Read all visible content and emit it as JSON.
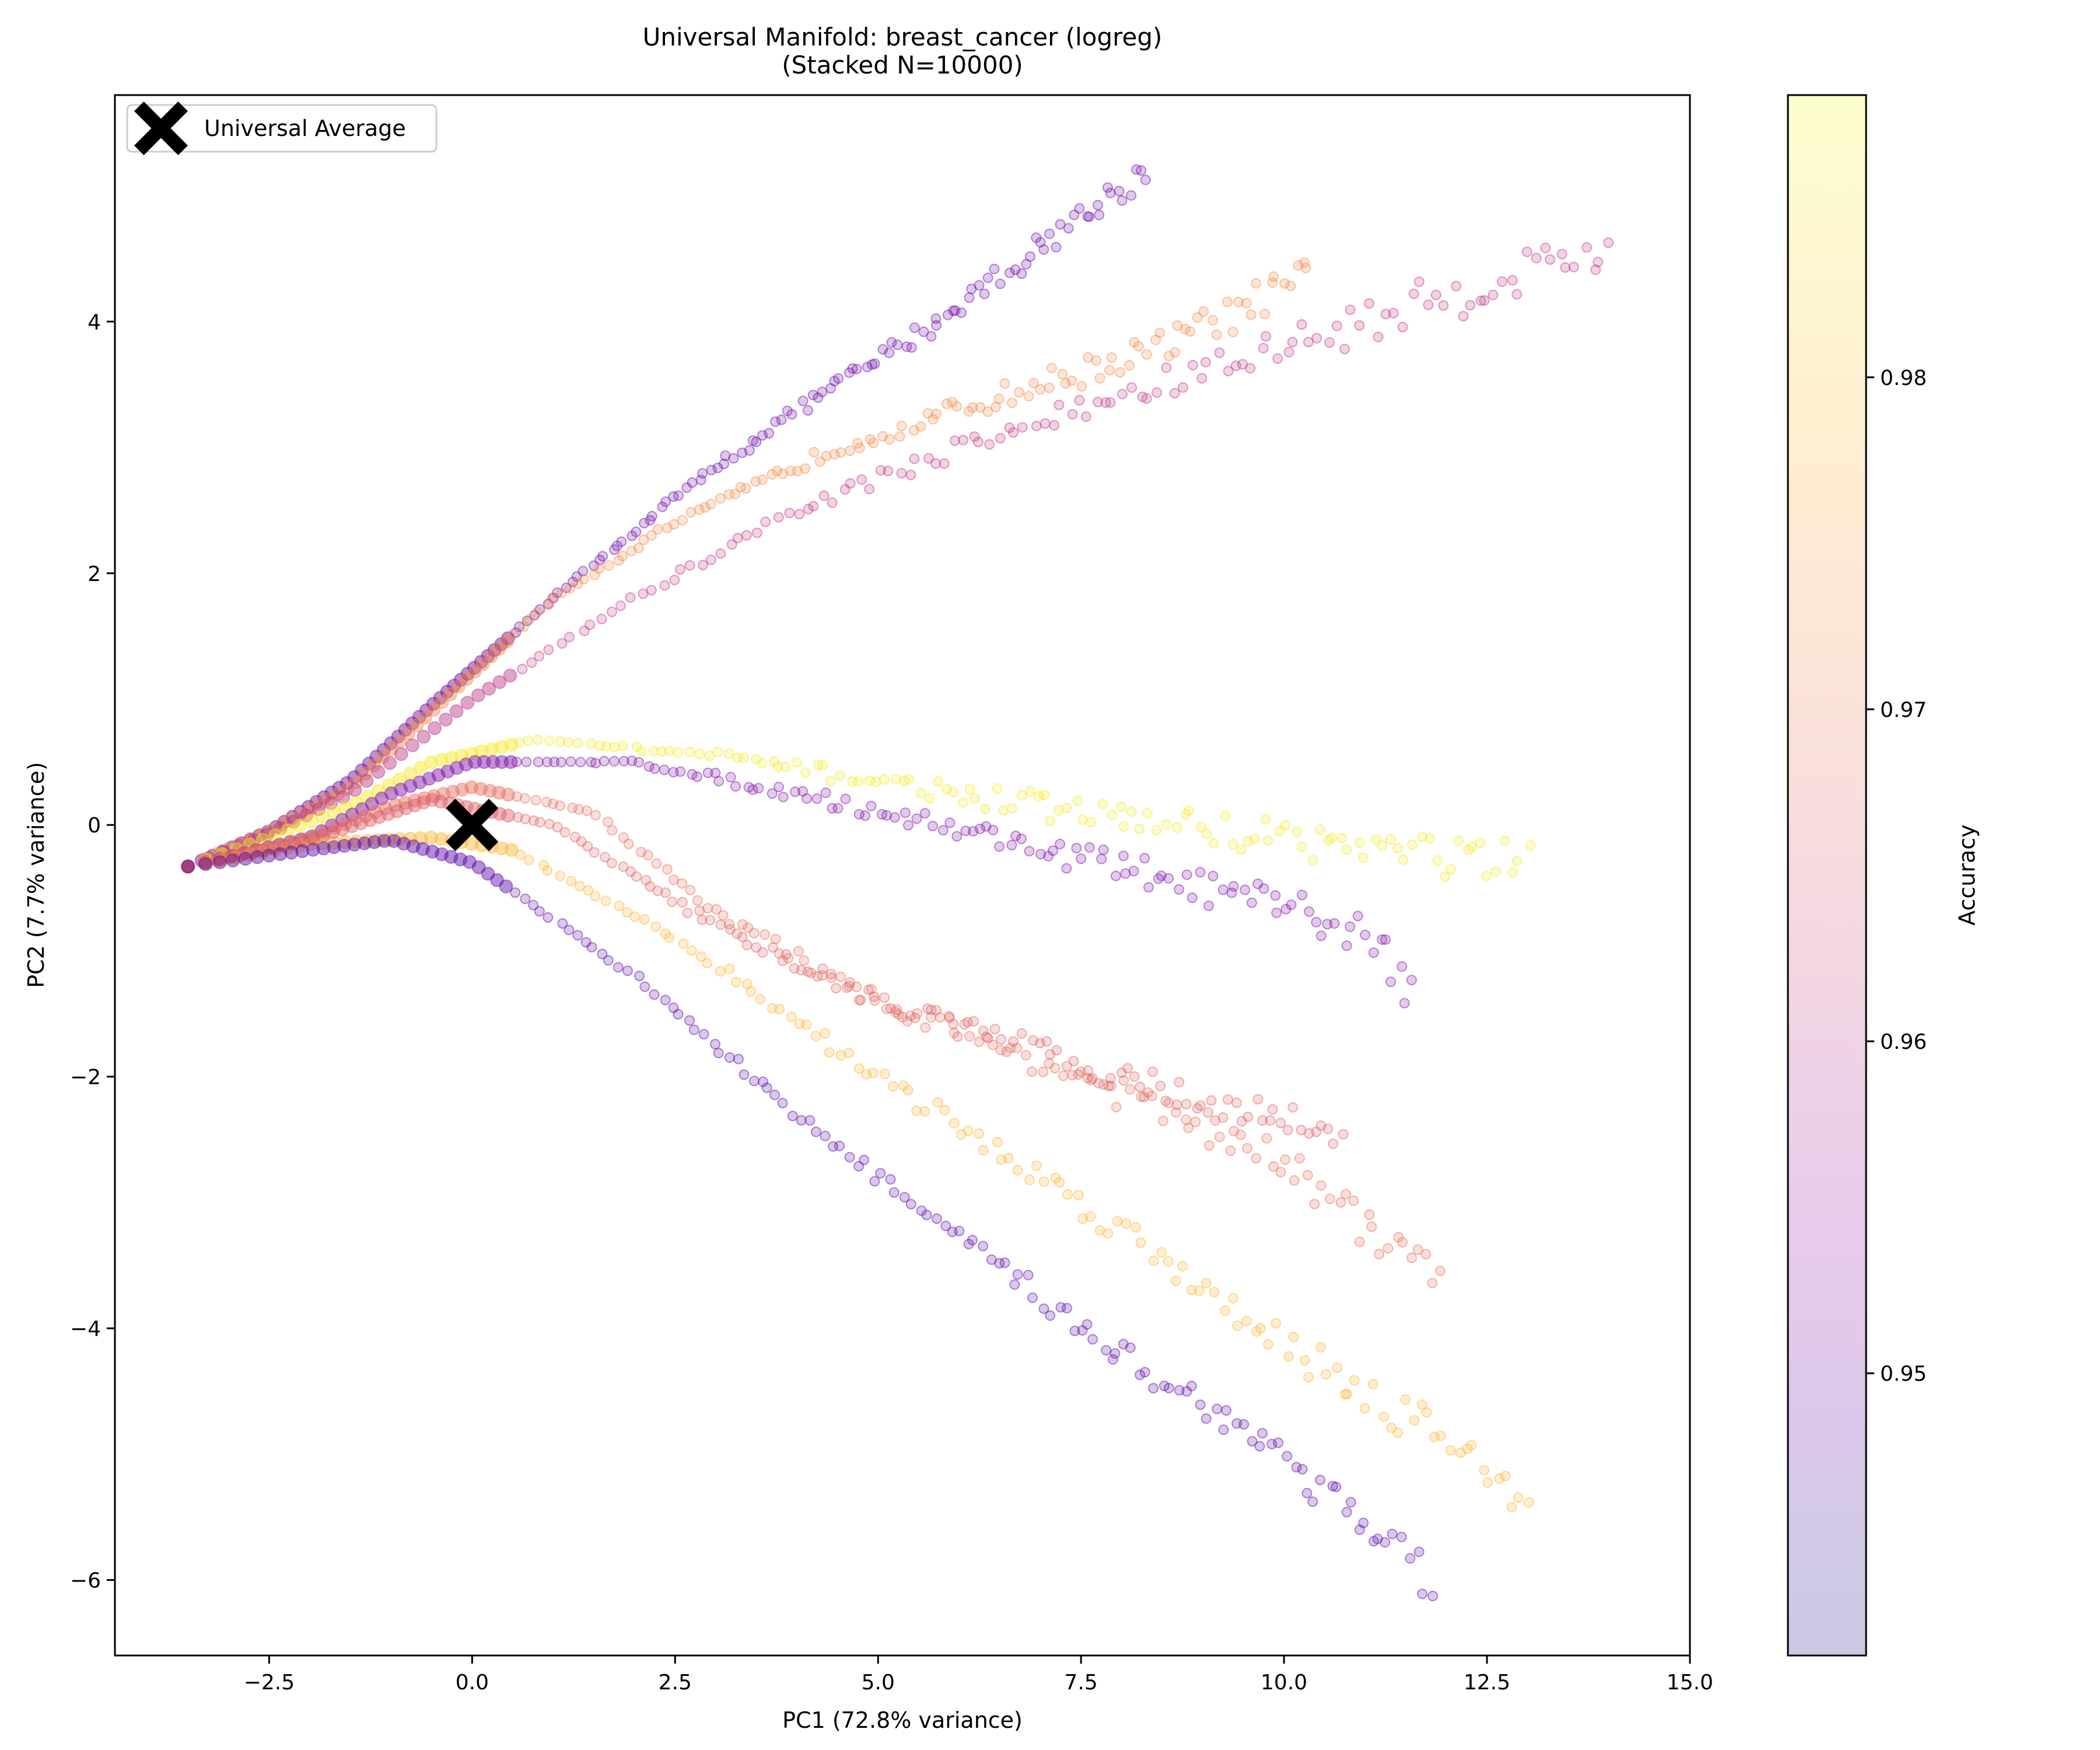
{
  "chart_data": {
    "type": "scatter",
    "title": "Universal Manifold: breast_cancer (logreg)",
    "subtitle": "(Stacked N=10000)",
    "xlabel": "PC1 (72.8% variance)",
    "ylabel": "PC2 (7.7% variance)",
    "xlim": [
      -4.4,
      15.0
    ],
    "ylim": [
      -6.6,
      5.8
    ],
    "xticks": [
      -2.5,
      0.0,
      2.5,
      5.0,
      7.5,
      10.0,
      12.5,
      15.0
    ],
    "xtick_labels": [
      "−2.5",
      "0.0",
      "2.5",
      "5.0",
      "7.5",
      "10.0",
      "12.5",
      "15.0"
    ],
    "yticks": [
      -6,
      -4,
      -2,
      0,
      2,
      4
    ],
    "ytick_labels": [
      "−6",
      "−4",
      "−2",
      "0",
      "2",
      "4"
    ],
    "grid": false,
    "legend": {
      "position": "top-left",
      "entries": [
        {
          "label": "Universal Average",
          "marker": "X",
          "color": "#000000"
        }
      ]
    },
    "colorbar": {
      "label": "Accuracy",
      "range": [
        0.9415,
        0.9885
      ],
      "ticks": [
        0.95,
        0.96,
        0.97,
        0.98
      ],
      "tick_labels": [
        "0.95",
        "0.96",
        "0.97",
        "0.98"
      ],
      "colormap": "plasma"
    },
    "origin": [
      -3.5,
      -0.33
    ],
    "universal_average": {
      "x": 0.0,
      "y": 0.0
    },
    "series": [
      {
        "name": "trajectory-1",
        "accuracy": 0.95,
        "points": [
          [
            -3.5,
            -0.33
          ],
          [
            -2.5,
            -0.05
          ],
          [
            -1.5,
            0.35
          ],
          [
            -0.5,
            0.95
          ],
          [
            1.0,
            1.8
          ],
          [
            2.5,
            2.6
          ],
          [
            4.0,
            3.3
          ],
          [
            5.5,
            3.9
          ],
          [
            7.0,
            4.6
          ],
          [
            8.3,
            5.2
          ]
        ]
      },
      {
        "name": "trajectory-2",
        "accuracy": 0.972,
        "points": [
          [
            -3.5,
            -0.33
          ],
          [
            -2.5,
            -0.05
          ],
          [
            -1.5,
            0.3
          ],
          [
            -0.5,
            0.9
          ],
          [
            1.0,
            1.8
          ],
          [
            2.5,
            2.4
          ],
          [
            4.5,
            3.0
          ],
          [
            6.5,
            3.4
          ],
          [
            8.5,
            3.8
          ],
          [
            10.3,
            4.35
          ]
        ]
      },
      {
        "name": "trajectory-3",
        "accuracy": 0.96,
        "points": [
          [
            -3.5,
            -0.33
          ],
          [
            -2.5,
            -0.07
          ],
          [
            -1.5,
            0.25
          ],
          [
            0.0,
            1.0
          ],
          [
            2.0,
            1.8
          ],
          [
            4.0,
            2.5
          ],
          [
            6.0,
            3.0
          ],
          [
            8.0,
            3.4
          ],
          [
            10.0,
            3.8
          ],
          [
            12.0,
            4.2
          ],
          [
            14.0,
            4.6
          ]
        ]
      },
      {
        "name": "trajectory-4",
        "accuracy": 0.986,
        "points": [
          [
            -3.5,
            -0.33
          ],
          [
            -2.5,
            -0.1
          ],
          [
            -1.5,
            0.15
          ],
          [
            -0.5,
            0.5
          ],
          [
            0.8,
            0.68
          ],
          [
            3.0,
            0.55
          ],
          [
            5.0,
            0.35
          ],
          [
            7.5,
            0.1
          ],
          [
            10.0,
            -0.1
          ],
          [
            12.0,
            -0.25
          ],
          [
            13.0,
            -0.35
          ]
        ]
      },
      {
        "name": "trajectory-5",
        "accuracy": 0.952,
        "points": [
          [
            -3.5,
            -0.33
          ],
          [
            -2.0,
            -0.1
          ],
          [
            -1.0,
            0.25
          ],
          [
            0.0,
            0.5
          ],
          [
            2.0,
            0.5
          ],
          [
            4.0,
            0.25
          ],
          [
            6.5,
            -0.1
          ],
          [
            9.0,
            -0.5
          ],
          [
            11.0,
            -0.85
          ],
          [
            11.6,
            -1.3
          ]
        ]
      },
      {
        "name": "trajectory-6",
        "accuracy": 0.968,
        "points": [
          [
            -3.5,
            -0.33
          ],
          [
            -2.0,
            -0.1
          ],
          [
            -1.0,
            0.15
          ],
          [
            0.0,
            0.3
          ],
          [
            1.5,
            0.1
          ],
          [
            3.0,
            -0.7
          ],
          [
            5.0,
            -1.4
          ],
          [
            7.5,
            -2.0
          ],
          [
            10.0,
            -2.7
          ],
          [
            11.9,
            -3.6
          ]
        ]
      },
      {
        "name": "trajectory-7",
        "accuracy": 0.978,
        "points": [
          [
            -3.5,
            -0.33
          ],
          [
            -2.0,
            -0.15
          ],
          [
            -0.5,
            -0.1
          ],
          [
            0.5,
            -0.2
          ],
          [
            2.5,
            -0.9
          ],
          [
            5.0,
            -2.0
          ],
          [
            7.5,
            -3.0
          ],
          [
            10.0,
            -4.1
          ],
          [
            12.0,
            -4.9
          ],
          [
            13.0,
            -5.3
          ]
        ]
      },
      {
        "name": "trajectory-8",
        "accuracy": 0.966,
        "points": [
          [
            -3.5,
            -0.33
          ],
          [
            -2.0,
            -0.12
          ],
          [
            -0.5,
            0.2
          ],
          [
            1.0,
            0.0
          ],
          [
            3.0,
            -0.8
          ],
          [
            5.0,
            -1.4
          ],
          [
            7.5,
            -1.9
          ],
          [
            9.5,
            -2.3
          ],
          [
            10.7,
            -2.4
          ]
        ]
      },
      {
        "name": "trajectory-9",
        "accuracy": 0.948,
        "points": [
          [
            -3.5,
            -0.33
          ],
          [
            -2.0,
            -0.2
          ],
          [
            -1.0,
            -0.12
          ],
          [
            0.0,
            -0.3
          ],
          [
            2.0,
            -1.2
          ],
          [
            4.0,
            -2.3
          ],
          [
            6.0,
            -3.3
          ],
          [
            8.0,
            -4.2
          ],
          [
            10.0,
            -5.0
          ],
          [
            11.8,
            -6.0
          ]
        ]
      }
    ]
  }
}
